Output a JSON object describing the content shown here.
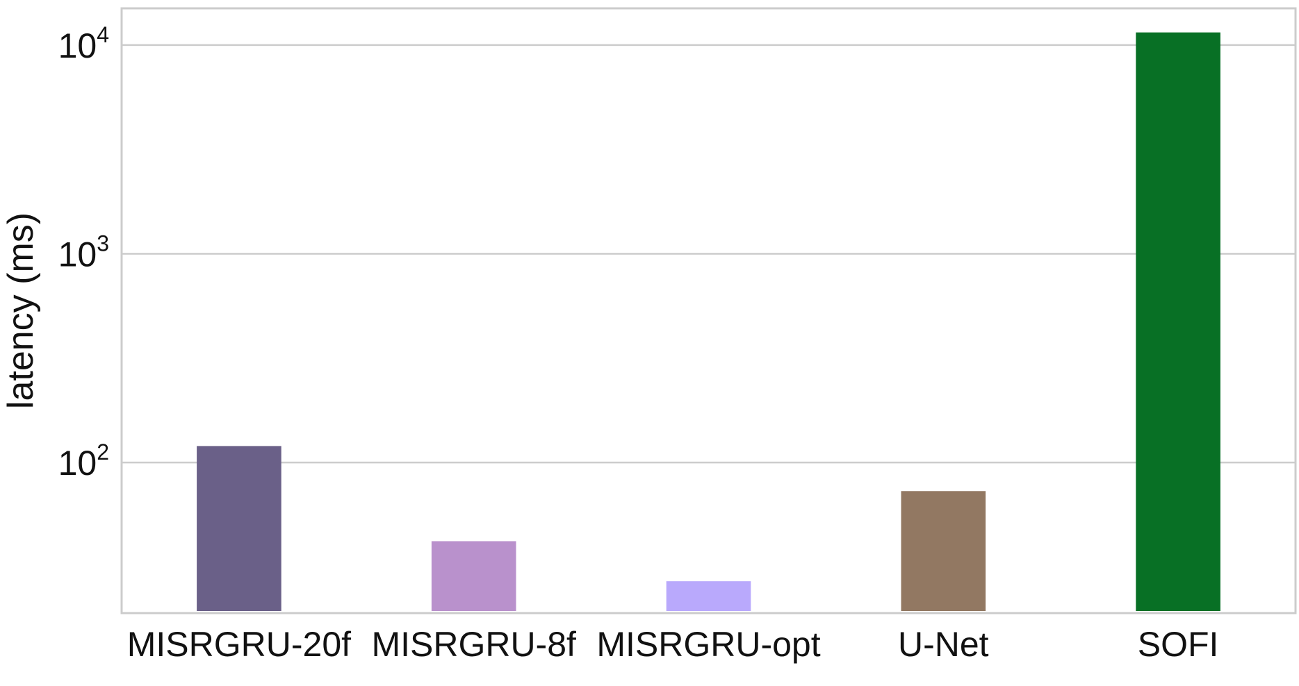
{
  "chart_data": {
    "type": "bar",
    "title": "",
    "xlabel": "",
    "ylabel": "latency (ms)",
    "yscale": "log",
    "ylim": [
      19,
      15000
    ],
    "yticks": [
      {
        "value": 100,
        "base": "10",
        "exp": "2"
      },
      {
        "value": 1000,
        "base": "10",
        "exp": "3"
      },
      {
        "value": 10000,
        "base": "10",
        "exp": "4"
      }
    ],
    "grid": true,
    "categories": [
      "MISRGRU-20f",
      "MISRGRU-8f",
      "MISRGRU-opt",
      "U-Net",
      "SOFI"
    ],
    "values": [
      120,
      42,
      27,
      73,
      11500
    ],
    "colors": [
      "#6a6088",
      "#b991cc",
      "#b9a9fc",
      "#927862",
      "#087025"
    ]
  }
}
